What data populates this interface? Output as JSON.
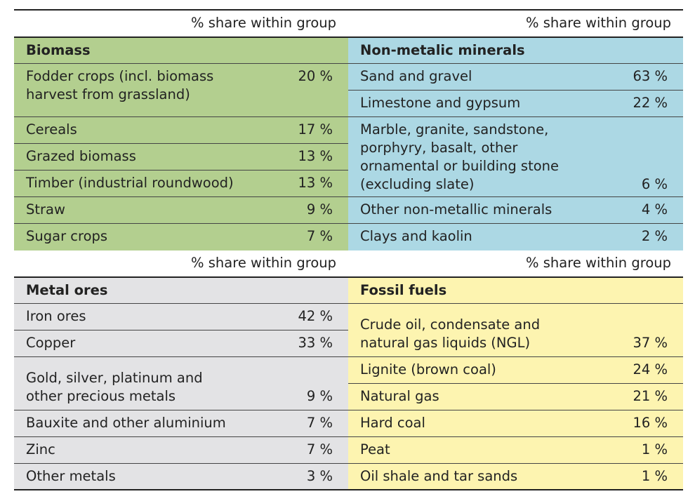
{
  "header_label": "% share within group",
  "groups": {
    "biomass": {
      "title": "Biomass",
      "color": "#b3cf8f",
      "rows": [
        {
          "label_line1": "Fodder crops (incl. biomass",
          "label_line2": "harvest from grassland)",
          "value": "20 %"
        },
        {
          "label": "Cereals",
          "value": "17 %"
        },
        {
          "label": "Grazed biomass",
          "value": "13 %"
        },
        {
          "label": "Timber (industrial roundwood)",
          "value": "13 %"
        },
        {
          "label": "Straw",
          "value": "9 %"
        },
        {
          "label": "Sugar crops",
          "value": "7 %"
        }
      ]
    },
    "minerals": {
      "title": "Non-metalic minerals",
      "color": "#acd8e4",
      "rows": [
        {
          "label": "Sand and gravel",
          "value": "63 %"
        },
        {
          "label": "Limestone and gypsum",
          "value": "22 %"
        },
        {
          "label_line1": "Marble, granite, sandstone,",
          "label_line2": "porphyry, basalt, other",
          "label_line3": "ornamental or building stone",
          "label_line4": "(excluding slate)",
          "value": "6 %"
        },
        {
          "label": "Other non-metallic minerals",
          "value": "4 %"
        },
        {
          "label": "Clays and kaolin",
          "value": "2 %"
        }
      ]
    },
    "metals": {
      "title": "Metal ores",
      "color": "#e3e3e5",
      "rows": [
        {
          "label": "Iron ores",
          "value": "42 %"
        },
        {
          "label": "Copper",
          "value": "33 %"
        },
        {
          "label_line1": "Gold, silver, platinum and",
          "label_line2": "other precious metals",
          "value": "9 %"
        },
        {
          "label": "Bauxite and other aluminium",
          "value": "7 %"
        },
        {
          "label": "Zinc",
          "value": "7 %"
        },
        {
          "label": "Other metals",
          "value": "3 %"
        }
      ]
    },
    "fossil": {
      "title": "Fossil fuels",
      "color": "#fdf4b0",
      "rows": [
        {
          "label_line1": "Crude oil, condensate and",
          "label_line2": "natural gas liquids (NGL)",
          "value": "37 %"
        },
        {
          "label": "Lignite (brown coal)",
          "value": "24 %"
        },
        {
          "label": "Natural gas",
          "value": "21 %"
        },
        {
          "label": "Hard coal",
          "value": "16 %"
        },
        {
          "label": "Peat",
          "value": "1 %"
        },
        {
          "label": "Oil shale and tar sands",
          "value": "1 %"
        }
      ]
    }
  }
}
